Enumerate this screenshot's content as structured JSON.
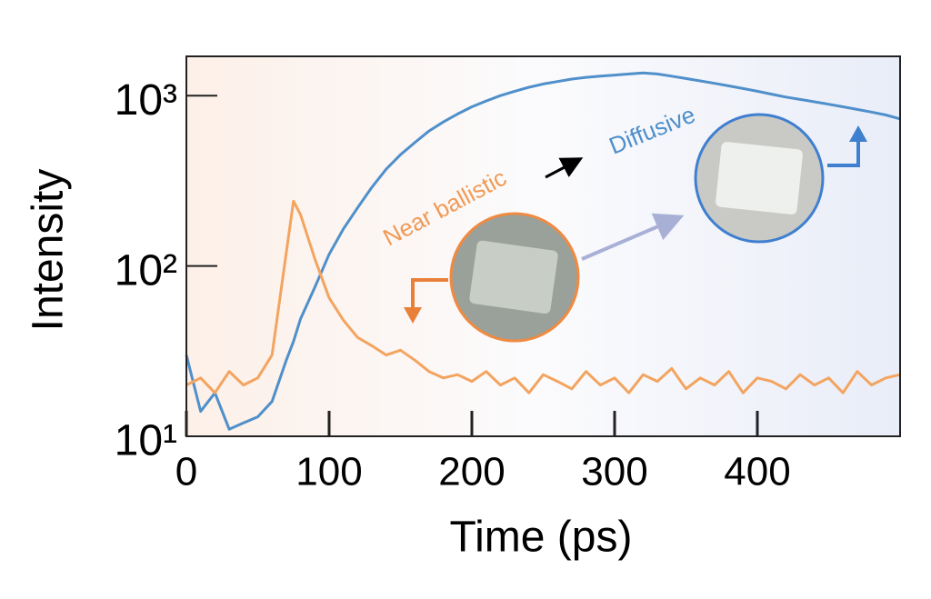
{
  "chart_data": {
    "type": "line",
    "x_label": "Time (ps)",
    "y_label": "Intensity",
    "log_y": true,
    "xlim": [
      0,
      500
    ],
    "xticks": [
      0,
      100,
      200,
      300,
      400
    ],
    "ylim": [
      10,
      1700
    ],
    "yticks": [
      {
        "value": 10,
        "label": "10¹"
      },
      {
        "value": 100,
        "label": "10²"
      },
      {
        "value": 1000,
        "label": "10³"
      }
    ],
    "x": [
      0,
      10,
      20,
      30,
      40,
      50,
      60,
      70,
      75,
      80,
      90,
      100,
      110,
      120,
      130,
      140,
      150,
      160,
      170,
      180,
      190,
      200,
      210,
      220,
      230,
      240,
      250,
      260,
      270,
      280,
      290,
      300,
      310,
      320,
      330,
      340,
      350,
      360,
      370,
      380,
      390,
      400,
      410,
      420,
      430,
      440,
      450,
      460,
      470,
      480,
      490,
      500
    ],
    "series": [
      {
        "name": "Diffusive",
        "color": "#4f8fca",
        "values": [
          30,
          14,
          18,
          11,
          12,
          13,
          16,
          28,
          36,
          49,
          75,
          117,
          165,
          220,
          290,
          370,
          450,
          530,
          620,
          700,
          780,
          860,
          930,
          1000,
          1060,
          1120,
          1170,
          1210,
          1250,
          1280,
          1300,
          1320,
          1340,
          1360,
          1340,
          1300,
          1260,
          1220,
          1180,
          1140,
          1100,
          1060,
          1020,
          980,
          950,
          920,
          890,
          860,
          830,
          800,
          770,
          730
        ]
      },
      {
        "name": "Near ballistic",
        "color": "#f3a460",
        "values": [
          20,
          22,
          18,
          24,
          20,
          22,
          30,
          120,
          240,
          200,
          110,
          65,
          48,
          38,
          34,
          30,
          32,
          28,
          24,
          22,
          23,
          21,
          24,
          20,
          22,
          18,
          23,
          21,
          19,
          24,
          20,
          22,
          18,
          23,
          21,
          25,
          19,
          22,
          20,
          24,
          18,
          22,
          21,
          19,
          23,
          20,
          22,
          18,
          24,
          20,
          22,
          23
        ]
      }
    ]
  }
}
